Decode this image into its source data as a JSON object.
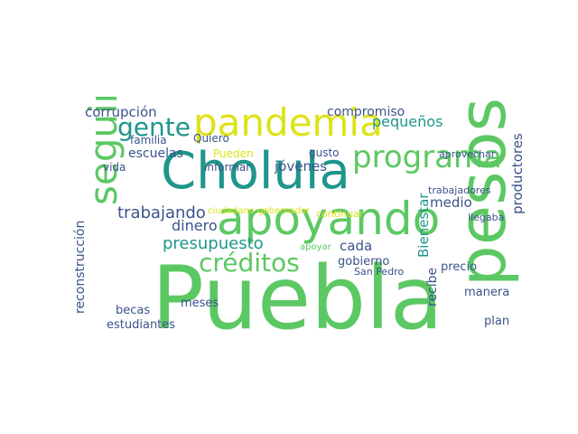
{
  "cloud": {
    "words": [
      {
        "text": "Puebla",
        "color": "#5cc863"
      },
      {
        "text": "pesos",
        "color": "#5cc863"
      },
      {
        "text": "apoyando",
        "color": "#5cc863"
      },
      {
        "text": "Cholula",
        "color": "#1f968b"
      },
      {
        "text": "pandemia",
        "color": "#dde318"
      },
      {
        "text": "seguir",
        "color": "#5cc863"
      },
      {
        "text": "programa",
        "color": "#5cc863"
      },
      {
        "text": "créditos",
        "color": "#5cc863"
      },
      {
        "text": "gente",
        "color": "#1f968b"
      },
      {
        "text": "presupuesto",
        "color": "#1f968b"
      },
      {
        "text": "trabajando",
        "color": "#3b528b"
      },
      {
        "text": "dinero",
        "color": "#3b528b"
      },
      {
        "text": "escuelas",
        "color": "#3b528b"
      },
      {
        "text": "corrupción",
        "color": "#3b528b"
      },
      {
        "text": "compromiso",
        "color": "#3b528b"
      },
      {
        "text": "pequeños",
        "color": "#1f968b"
      },
      {
        "text": "jóvenes",
        "color": "#3b528b"
      },
      {
        "text": "productores",
        "color": "#3b528b"
      },
      {
        "text": "reconstrucción",
        "color": "#3b528b"
      },
      {
        "text": "Bienestar",
        "color": "#1f968b"
      },
      {
        "text": "medio",
        "color": "#3b528b"
      },
      {
        "text": "cada",
        "color": "#3b528b"
      },
      {
        "text": "gobierno",
        "color": "#3b528b"
      },
      {
        "text": "familia",
        "color": "#3b528b"
      },
      {
        "text": "informar",
        "color": "#3b528b"
      },
      {
        "text": "recibe",
        "color": "#3b528b"
      },
      {
        "text": "estudiantes",
        "color": "#3b528b"
      },
      {
        "text": "becas",
        "color": "#3b528b"
      },
      {
        "text": "meses",
        "color": "#3b528b"
      },
      {
        "text": "manera",
        "color": "#3b528b"
      },
      {
        "text": "precio",
        "color": "#3b528b"
      },
      {
        "text": "plan",
        "color": "#3b528b"
      },
      {
        "text": "vida",
        "color": "#3b528b"
      },
      {
        "text": "Pueden",
        "color": "#dde318"
      },
      {
        "text": "gusto",
        "color": "#3b528b"
      },
      {
        "text": "Quiero",
        "color": "#3b528b"
      },
      {
        "text": "San Pedro",
        "color": "#3b528b"
      },
      {
        "text": "trabajadores",
        "color": "#3b528b"
      },
      {
        "text": "continuar",
        "color": "#dde318"
      },
      {
        "text": "llegaba",
        "color": "#3b528b"
      },
      {
        "text": "aprovechar",
        "color": "#3b528b"
      },
      {
        "text": "ciudadano gobernador",
        "color": "#dde318"
      },
      {
        "text": "apoyar",
        "color": "#5cc863"
      }
    ]
  }
}
